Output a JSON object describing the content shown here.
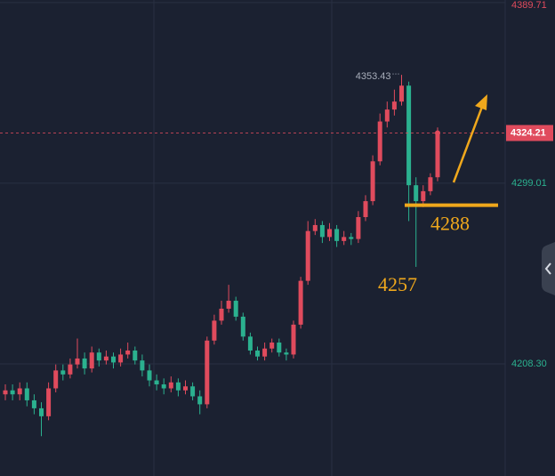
{
  "chart_data": {
    "type": "candlestick",
    "up_color": "#e04b5d",
    "down_color": "#2bb18f",
    "open": [
      4193,
      4195,
      4193,
      4196,
      4190,
      4186,
      4182,
      4196,
      4205,
      4203,
      4208,
      4211,
      4206,
      4214,
      4210,
      4212,
      4209,
      4213,
      4215,
      4210,
      4205,
      4200,
      4198,
      4196,
      4199,
      4195,
      4197,
      4192,
      4188,
      4220,
      4230,
      4236,
      4240,
      4232,
      4222,
      4215,
      4212,
      4216,
      4219,
      4214,
      4213,
      4228,
      4250,
      4275,
      4278,
      4272,
      4276,
      4270,
      4272,
      4271,
      4282,
      4290,
      4310,
      4330,
      4336,
      4340,
      4348,
      4298,
      4290,
      4295,
      4302
    ],
    "high": [
      4198,
      4198,
      4199,
      4199,
      4193,
      4189,
      4199,
      4208,
      4208,
      4211,
      4221,
      4214,
      4217,
      4216,
      4215,
      4214,
      4216,
      4219,
      4217,
      4213,
      4208,
      4203,
      4201,
      4202,
      4201,
      4200,
      4199,
      4195,
      4222,
      4233,
      4240,
      4248,
      4242,
      4234,
      4224,
      4217,
      4219,
      4221,
      4221,
      4216,
      4230,
      4252,
      4280,
      4281,
      4280,
      4279,
      4278,
      4275,
      4274,
      4285,
      4293,
      4313,
      4334,
      4340,
      4346,
      4353.43,
      4350,
      4302,
      4298,
      4304,
      4327
    ],
    "low": [
      4190,
      4190,
      4190,
      4187,
      4183,
      4172,
      4180,
      4194,
      4200,
      4201,
      4206,
      4203,
      4204,
      4207,
      4208,
      4206,
      4207,
      4211,
      4208,
      4202,
      4197,
      4195,
      4193,
      4194,
      4192,
      4193,
      4190,
      4183,
      4186,
      4218,
      4228,
      4234,
      4230,
      4220,
      4213,
      4210,
      4210,
      4214,
      4212,
      4210,
      4211,
      4226,
      4248,
      4273,
      4269,
      4270,
      4267,
      4268,
      4268,
      4269,
      4280,
      4288,
      4308,
      4327,
      4333,
      4338,
      4280,
      4257,
      4287,
      4293,
      4300
    ],
    "close": [
      4195,
      4193,
      4196,
      4190,
      4186,
      4182,
      4196,
      4205,
      4203,
      4208,
      4211,
      4206,
      4214,
      4210,
      4212,
      4209,
      4213,
      4215,
      4210,
      4205,
      4200,
      4198,
      4196,
      4199,
      4195,
      4197,
      4192,
      4188,
      4220,
      4230,
      4236,
      4240,
      4232,
      4222,
      4215,
      4212,
      4216,
      4219,
      4214,
      4213,
      4228,
      4250,
      4275,
      4278,
      4272,
      4276,
      4270,
      4272,
      4271,
      4282,
      4290,
      4310,
      4330,
      4336,
      4340,
      4348,
      4298,
      4290,
      4295,
      4302,
      4324
    ],
    "high_label_index": 55,
    "current_price": 4324.21,
    "ylim": [
      4152,
      4391
    ],
    "yticks": [
      {
        "value": 4208.3,
        "label": "4208.30"
      },
      4299.01,
      4389.71
    ],
    "grid": true,
    "annotations": [
      {
        "text": "4257",
        "value": 4257
      },
      {
        "text": "4288",
        "value": 4288
      }
    ]
  }
}
